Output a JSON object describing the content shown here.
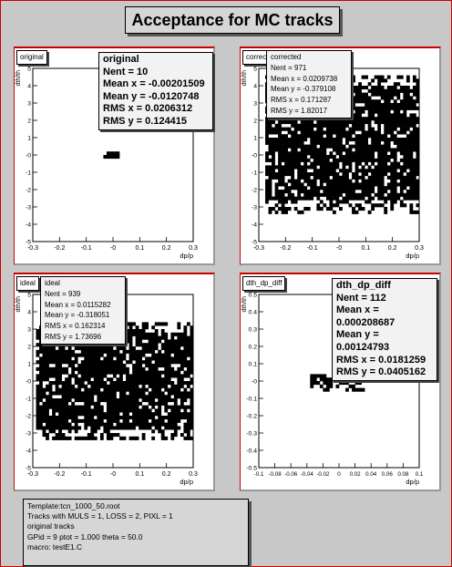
{
  "page": {
    "title": "Acceptance for MC tracks",
    "note_lines": [
      "Template:tcn_1000_50.root",
      "Tracks with  MULS = 1, LOSS = 2, PIXL = 1",
      "original tracks",
      "GPid =  9   ptot =  1.000  theta =  50.0",
      "macro: testE1.C"
    ]
  },
  "pads": [
    {
      "tag": "original",
      "stats": {
        "title": "original",
        "lines": [
          "Nent = 10",
          "Mean x  = -0.00201509",
          "Mean y  = -0.0120748",
          "RMS x   = 0.0206312",
          "RMS y   = 0.124415"
        ]
      }
    },
    {
      "tag": "corrected",
      "stats": {
        "title": "corrected",
        "lines": [
          "Nent = 971",
          "Mean x = 0.0209738",
          "Mean y = -0.379108",
          "RMS x  = 0.171287",
          "RMS y  = 1.82017"
        ]
      }
    },
    {
      "tag": "ideal",
      "stats": {
        "title": "ideal",
        "lines": [
          "Nent = 939",
          "Mean x = 0.0115282",
          "Mean y = -0.318051",
          "RMS x  = 0.162314",
          "RMS y  = 1.73696"
        ]
      }
    },
    {
      "tag": "dth_dp_diff",
      "stats": {
        "title": "dth_dp_diff",
        "lines": [
          "Nent = 112",
          "Mean x = 0.000208687",
          "Mean y = 0.00124793",
          "RMS x  = 0.0181259",
          "RMS y  = 0.0405162"
        ]
      }
    }
  ],
  "chart_data": [
    {
      "type": "heatmap",
      "name": "original",
      "xlabel": "dp/p",
      "ylabel": "dth/th",
      "xlim": [
        -0.3,
        0.3
      ],
      "ylim": [
        -5,
        5
      ],
      "xticks": [
        -0.3,
        -0.2,
        -0.1,
        0,
        0.1,
        0.2,
        0.3
      ],
      "xtick_labels": [
        "-0.3",
        "-0.2",
        "-0.1",
        "-0",
        "0.1",
        "0.2",
        "0.3"
      ],
      "yticks": [
        -5,
        -4,
        -3,
        -2,
        -1,
        0,
        1,
        2,
        3,
        4,
        5
      ],
      "ytick_labels": [
        "-5",
        "-4",
        "-3",
        "-2",
        "-1",
        "-0",
        "1",
        "2",
        "3",
        "4",
        "5"
      ],
      "region": {
        "x": [
          -0.03,
          0.03
        ],
        "y": [
          -0.25,
          0.2
        ],
        "density": 0.9
      },
      "nent": 10
    },
    {
      "type": "heatmap",
      "name": "corrected",
      "xlabel": "dp/p",
      "ylabel": "dth/th",
      "xlim": [
        -0.3,
        0.3
      ],
      "ylim": [
        -5,
        5
      ],
      "xticks": [
        -0.3,
        -0.2,
        -0.1,
        0,
        0.1,
        0.2,
        0.3
      ],
      "xtick_labels": [
        "-0.3",
        "-0.2",
        "-0.1",
        "-0",
        "0.1",
        "0.2",
        "0.3"
      ],
      "yticks": [
        -5,
        -4,
        -3,
        -2,
        -1,
        0,
        1,
        2,
        3,
        4,
        5
      ],
      "ytick_labels": [
        "-5",
        "-4",
        "-3",
        "-2",
        "-1",
        "-0",
        "1",
        "2",
        "3",
        "4",
        "5"
      ],
      "region": {
        "x": [
          -0.28,
          0.3
        ],
        "y": [
          -3.3,
          4.6
        ],
        "density": 0.85
      },
      "nent": 971
    },
    {
      "type": "heatmap",
      "name": "ideal",
      "xlabel": "dp/p",
      "ylabel": "dth/th",
      "xlim": [
        -0.3,
        0.3
      ],
      "ylim": [
        -5,
        5
      ],
      "xticks": [
        -0.3,
        -0.2,
        -0.1,
        0,
        0.1,
        0.2,
        0.3
      ],
      "xtick_labels": [
        "-0.3",
        "-0.2",
        "-0.1",
        "-0",
        "0.1",
        "0.2",
        "0.3"
      ],
      "yticks": [
        -5,
        -4,
        -3,
        -2,
        -1,
        0,
        1,
        2,
        3,
        4,
        5
      ],
      "ytick_labels": [
        "-5",
        "-4",
        "-3",
        "-2",
        "-1",
        "-0",
        "1",
        "2",
        "3",
        "4",
        "5"
      ],
      "region": {
        "x": [
          -0.29,
          0.3
        ],
        "y": [
          -3.3,
          3.3
        ],
        "density": 0.85
      },
      "nent": 939
    },
    {
      "type": "heatmap",
      "name": "dth_dp_diff",
      "xlabel": "dp/p",
      "ylabel": "dth/th",
      "xlim": [
        -0.1,
        0.1
      ],
      "ylim": [
        -0.5,
        0.5
      ],
      "xticks": [
        -0.1,
        -0.08,
        -0.06,
        -0.04,
        -0.02,
        0,
        0.02,
        0.04,
        0.06,
        0.08,
        0.1
      ],
      "xtick_labels": [
        "-0.1",
        "-0.08",
        "-0.06",
        "-0.04",
        "-0.02",
        "0",
        "0.02",
        "0.04",
        "0.06",
        "0.08",
        "0.1"
      ],
      "yticks": [
        -0.5,
        -0.4,
        -0.3,
        -0.2,
        -0.1,
        0,
        0.1,
        0.2,
        0.3,
        0.4,
        0.5
      ],
      "ytick_labels": [
        "-0.5",
        "-0.4",
        "-0.3",
        "-0.2",
        "-0.1",
        "-0",
        "0.1",
        "0.2",
        "0.3",
        "0.4",
        "0.5"
      ],
      "region": {
        "x": [
          -0.035,
          0.03
        ],
        "y": [
          -0.05,
          0.04
        ],
        "density": 0.6
      },
      "nent": 112
    }
  ]
}
